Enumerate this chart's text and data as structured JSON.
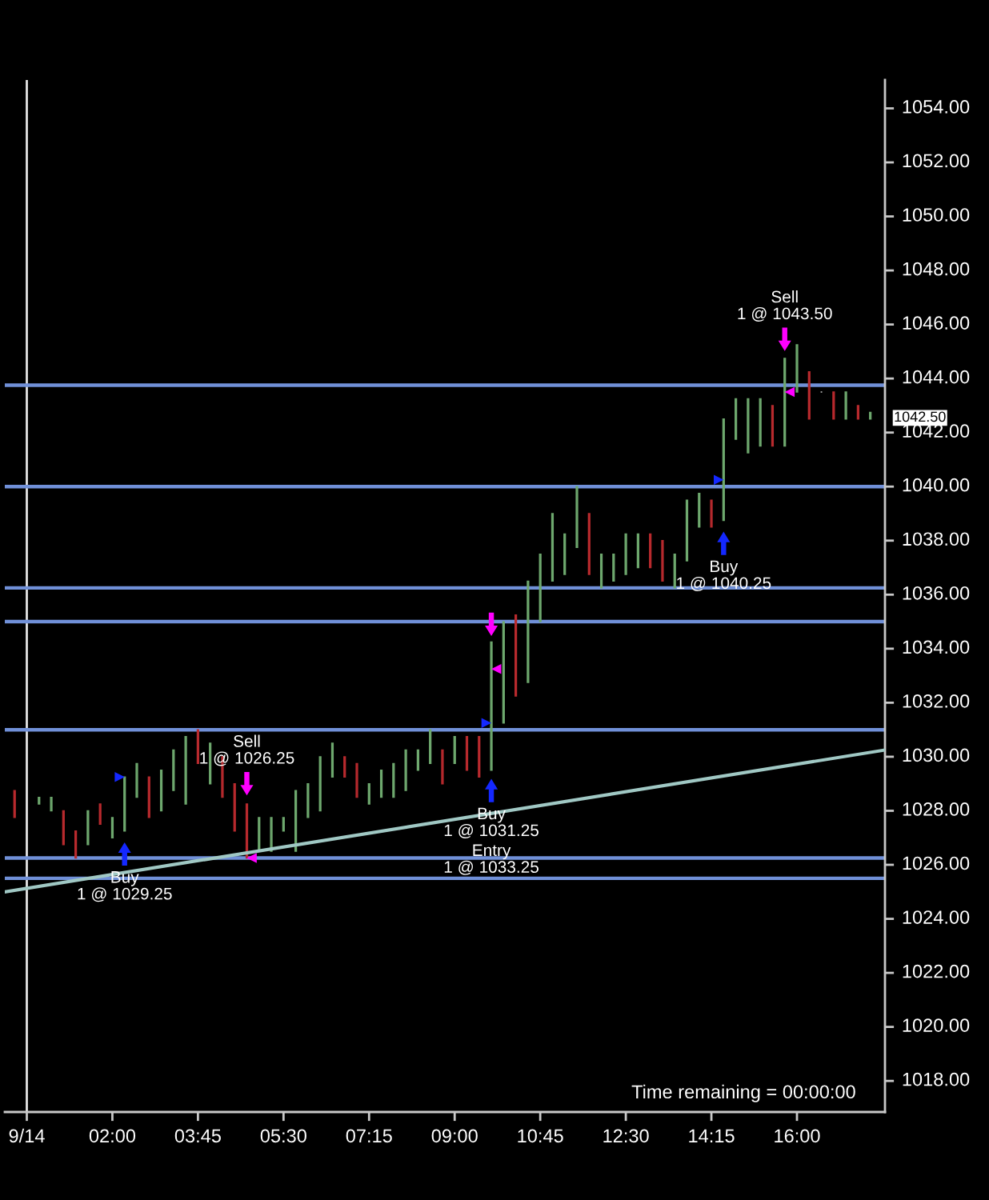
{
  "chart_data": {
    "type": "bar",
    "series": [
      {
        "x": [
          0,
          0.5,
          0.75,
          1,
          1.25,
          1.5,
          1.75,
          2,
          2.25,
          2.5,
          2.75,
          3,
          3.25,
          3.5,
          3.75,
          4,
          4.25,
          4.5,
          4.75,
          5,
          5.25,
          5.5,
          5.75,
          6,
          6.25,
          6.5,
          6.75,
          7,
          7.25,
          7.5,
          7.75,
          8,
          8.25,
          8.5,
          8.75,
          9,
          9.25,
          9.5,
          9.75,
          10,
          10.25,
          10.5,
          10.75,
          11,
          11.25,
          11.5,
          11.75,
          12,
          12.25,
          12.5,
          12.75,
          13,
          13.25,
          13.5,
          13.75,
          14,
          14.25,
          14.5,
          14.75,
          15,
          15.25,
          15.5,
          15.75,
          16,
          16.25,
          16.5,
          16.75,
          17,
          17.25,
          17.5
        ],
        "base": [
          1027.75,
          1028.25,
          1028.0,
          1026.75,
          1026.25,
          1026.75,
          1027.5,
          1027.0,
          1027.25,
          1028.5,
          1027.75,
          1028.0,
          1028.75,
          1028.25,
          1029.75,
          1029.0,
          1028.5,
          1027.25,
          1026.25,
          1026.5,
          1026.5,
          1027.25,
          1026.5,
          1027.75,
          1028.0,
          1029.25,
          1029.25,
          1028.5,
          1028.25,
          1028.5,
          1028.5,
          1028.75,
          1029.5,
          1029.75,
          1029.0,
          1029.75,
          1029.5,
          1029.25,
          1029.5,
          1031.25,
          1032.25,
          1032.75,
          1035.0,
          1036.5,
          1036.75,
          1037.75,
          1036.75,
          1036.25,
          1036.5,
          1036.75,
          1037.0,
          1037.0,
          1036.5,
          1036.25,
          1037.25,
          1038.5,
          1038.5,
          1038.75,
          1041.75,
          1041.25,
          1041.5,
          1041.5,
          1041.5,
          1043.5,
          1042.5,
          1043.5,
          1042.5,
          1042.5,
          1042.5,
          1042.5
        ],
        "values": [
          1.0,
          0.25,
          0.5,
          1.25,
          1.0,
          1.25,
          0.75,
          0.75,
          2.0,
          1.25,
          1.5,
          1.5,
          1.5,
          2.5,
          1.25,
          1.5,
          1.5,
          1.75,
          2.0,
          1.25,
          1.25,
          0.5,
          2.25,
          1.25,
          2.0,
          1.25,
          0.75,
          1.25,
          0.75,
          1.0,
          1.25,
          1.5,
          0.75,
          1.25,
          1.25,
          1.0,
          1.25,
          1.5,
          4.75,
          3.75,
          3.0,
          3.75,
          2.5,
          2.5,
          1.5,
          2.25,
          2.25,
          1.25,
          1.0,
          1.5,
          1.25,
          1.25,
          1.5,
          1.25,
          2.25,
          1.25,
          1.0,
          3.75,
          1.5,
          2.0,
          1.75,
          1.5,
          3.25,
          1.75,
          1.75,
          0,
          1.0,
          1.0,
          0.5,
          0.25
        ],
        "colors": [
          "#b82a2e",
          "#6ea86e",
          "#6ea86e",
          "#b82a2e",
          "#b82a2e",
          "#6ea86e",
          "#b82a2e",
          "#6ea86e",
          "#6ea86e",
          "#6ea86e",
          "#b82a2e",
          "#6ea86e",
          "#6ea86e",
          "#6ea86e",
          "#b82a2e",
          "#6ea86e",
          "#b82a2e",
          "#b82a2e",
          "#b82a2e",
          "#6ea86e",
          "#6ea86e",
          "#6ea86e",
          "#6ea86e",
          "#6ea86e",
          "#6ea86e",
          "#6ea86e",
          "#b82a2e",
          "#b82a2e",
          "#6ea86e",
          "#6ea86e",
          "#6ea86e",
          "#6ea86e",
          "#6ea86e",
          "#6ea86e",
          "#b82a2e",
          "#6ea86e",
          "#b82a2e",
          "#b82a2e",
          "#6ea86e",
          "#6ea86e",
          "#b82a2e",
          "#6ea86e",
          "#6ea86e",
          "#6ea86e",
          "#6ea86e",
          "#6ea86e",
          "#b82a2e",
          "#6ea86e",
          "#6ea86e",
          "#6ea86e",
          "#6ea86e",
          "#b82a2e",
          "#b82a2e",
          "#6ea86e",
          "#6ea86e",
          "#6ea86e",
          "#b82a2e",
          "#6ea86e",
          "#6ea86e",
          "#6ea86e",
          "#6ea86e",
          "#b82a2e",
          "#6ea86e",
          "#6ea86e",
          "#b82a2e",
          "#c8c8c8",
          "#b82a2e",
          "#6ea86e",
          "#b82a2e",
          "#6ea86e"
        ]
      },
      {
        "type": "line",
        "x": [
          -0.2,
          17.8
        ],
        "values": [
          1025.0,
          1030.25
        ],
        "color": "#a0c8c4"
      },
      {
        "type": "scatter",
        "x": [
          2.15,
          9.65,
          14.4
        ],
        "values": [
          1029.25,
          1031.25,
          1040.25
        ],
        "color": "#1428ff",
        "marker": "triangle"
      },
      {
        "type": "scatter",
        "x": [
          4.85,
          9.85,
          15.85
        ],
        "values": [
          1026.25,
          1033.25,
          1043.5
        ],
        "color": "#ff00ff",
        "marker": "triangle"
      },
      {
        "type": "scatter",
        "x": [
          2.25,
          9.75,
          14.5
        ],
        "values": [
          1026.4,
          1028.75,
          1037.9
        ],
        "color": "#1428ff",
        "marker": "triangle"
      },
      {
        "type": "scatter",
        "x": [
          4.75,
          9.75,
          15.75
        ],
        "values": [
          1029.0,
          1034.9,
          1045.45
        ],
        "color": "#ff00ff",
        "marker": "triangle"
      }
    ],
    "ref_lines": [
      {
        "axis": "x",
        "value": 0.25,
        "color": "#e6e6e6"
      },
      {
        "axis": "y",
        "value": 1043.75,
        "color": "#7090d8"
      },
      {
        "axis": "y",
        "value": 1040,
        "color": "#7090d8"
      },
      {
        "axis": "y",
        "value": 1036.25,
        "color": "#7090d8"
      },
      {
        "axis": "y",
        "value": 1035,
        "color": "#7090d8"
      },
      {
        "axis": "y",
        "value": 1031,
        "color": "#7090d8"
      },
      {
        "axis": "y",
        "value": 1026.25,
        "color": "#7090d8"
      },
      {
        "axis": "y",
        "value": 1025.5,
        "color": "#7090d8"
      }
    ],
    "xlim": [
      -0.2,
      17.8
    ],
    "xticks": [
      {
        "value": 0.25,
        "label": "9/14"
      },
      {
        "value": 2,
        "label": "02:00"
      },
      {
        "value": 3.75,
        "label": "03:45"
      },
      {
        "value": 5.5,
        "label": "05:30"
      },
      {
        "value": 7.25,
        "label": "07:15"
      },
      {
        "value": 9,
        "label": "09:00"
      },
      {
        "value": 10.75,
        "label": "10:45"
      },
      {
        "value": 12.5,
        "label": "12:30"
      },
      {
        "value": 14.25,
        "label": "14:15"
      },
      {
        "value": 16,
        "label": "16:00"
      }
    ],
    "ylim": [
      1016.85,
      1055.05
    ],
    "yticks": [
      {
        "value": 1018,
        "label": "1018.00"
      },
      {
        "value": 1020,
        "label": "1020.00"
      },
      {
        "value": 1022,
        "label": "1022.00"
      },
      {
        "value": 1024,
        "label": "1024.00"
      },
      {
        "value": 1026,
        "label": "1026.00"
      },
      {
        "value": 1028,
        "label": "1028.00"
      },
      {
        "value": 1030,
        "label": "1030.00"
      },
      {
        "value": 1032,
        "label": "1032.00"
      },
      {
        "value": 1034,
        "label": "1034.00"
      },
      {
        "value": 1036,
        "label": "1036.00"
      },
      {
        "value": 1038,
        "label": "1038.00"
      },
      {
        "value": 1040,
        "label": "1040.00"
      },
      {
        "value": 1042,
        "label": "1042.00"
      },
      {
        "value": 1044,
        "label": "1044.00"
      },
      {
        "value": 1046,
        "label": "1046.00"
      },
      {
        "value": 1048,
        "label": "1048.00"
      },
      {
        "value": 1050,
        "label": "1050.00"
      },
      {
        "value": 1052,
        "label": "1052.00"
      },
      {
        "value": 1054,
        "label": "1054.00"
      }
    ],
    "annotations": [
      "Time remaining = 00:00:00",
      {
        "text": "Buy\n1 @ 1029.25",
        "x": 2.25,
        "y": 1026.4
      },
      {
        "text": "Sell\n1 @ 1026.25",
        "x": 4.75,
        "y": 1029.0
      },
      {
        "text": "Buy\n1 @ 1031.25",
        "x": 9.75,
        "y": 1028.75
      },
      "Entry\n1 @ 1033.25",
      {
        "text": "Buy\n1 @ 1040.25",
        "x": 14.5,
        "y": 1037.9
      },
      {
        "text": "Sell\n1 @ 1043.50",
        "x": 15.75,
        "y": 1045.45
      },
      {
        "text": "1042.50",
        "x": 17.5,
        "y": 1042.5
      }
    ]
  }
}
